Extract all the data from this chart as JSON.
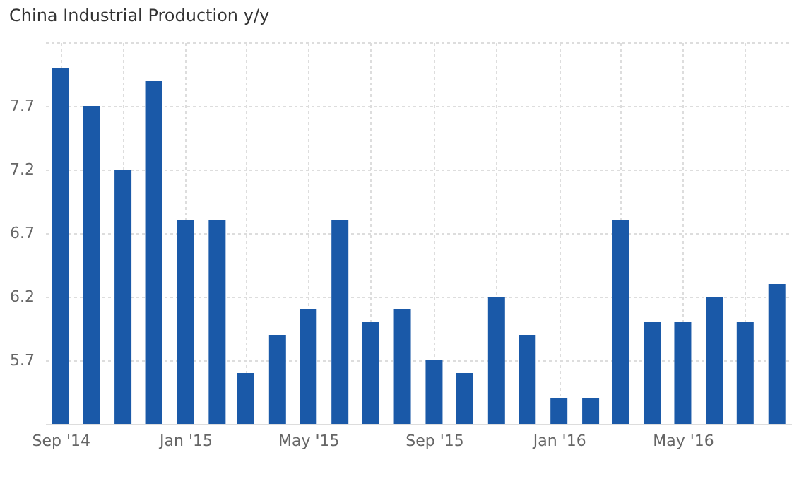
{
  "chart_data": {
    "type": "bar",
    "title": "China Industrial Production y/y",
    "x": [
      "2014-09-01",
      "2014-10-01",
      "2014-11-01",
      "2014-12-01",
      "2015-01-01",
      "2015-02-01",
      "2015-03-01",
      "2015-04-01",
      "2015-05-01",
      "2015-06-01",
      "2015-07-01",
      "2015-08-01",
      "2015-09-01",
      "2015-10-01",
      "2015-11-01",
      "2015-12-01",
      "2016-01-01",
      "2016-02-01",
      "2016-03-01",
      "2016-04-01",
      "2016-05-01",
      "2016-06-01",
      "2016-07-01",
      "2016-08-01"
    ],
    "values": [
      8.0,
      7.7,
      7.2,
      7.9,
      6.8,
      6.8,
      5.6,
      5.9,
      6.1,
      6.8,
      6.0,
      6.1,
      5.7,
      5.6,
      6.2,
      5.9,
      5.4,
      5.4,
      6.8,
      6.0,
      6.0,
      6.2,
      6.0,
      6.3
    ],
    "color": "#1a59a8",
    "ylim": [
      5.2,
      8.2
    ],
    "yticks": [
      5.7,
      6.2,
      6.7,
      7.2,
      7.7,
      {
        "value": 8.2,
        "label": null
      }
    ],
    "xlim": [
      "2014-08-17",
      "2016-08-15"
    ],
    "xticks": [
      {
        "value": "2014-09-01",
        "label": "Sep '14"
      },
      {
        "value": "2014-11-01",
        "label": null
      },
      {
        "value": "2015-01-01",
        "label": "Jan '15"
      },
      {
        "value": "2015-03-01",
        "label": null
      },
      {
        "value": "2015-05-01",
        "label": "May '15"
      },
      {
        "value": "2015-07-01",
        "label": null
      },
      {
        "value": "2015-09-01",
        "label": "Sep '15"
      },
      {
        "value": "2015-11-01",
        "label": null
      },
      {
        "value": "2016-01-01",
        "label": "Jan '16"
      },
      {
        "value": "2016-03-01",
        "label": null
      },
      {
        "value": "2016-05-01",
        "label": "May '16"
      },
      {
        "value": "2016-07-01",
        "label": null
      }
    ],
    "grid": true
  }
}
